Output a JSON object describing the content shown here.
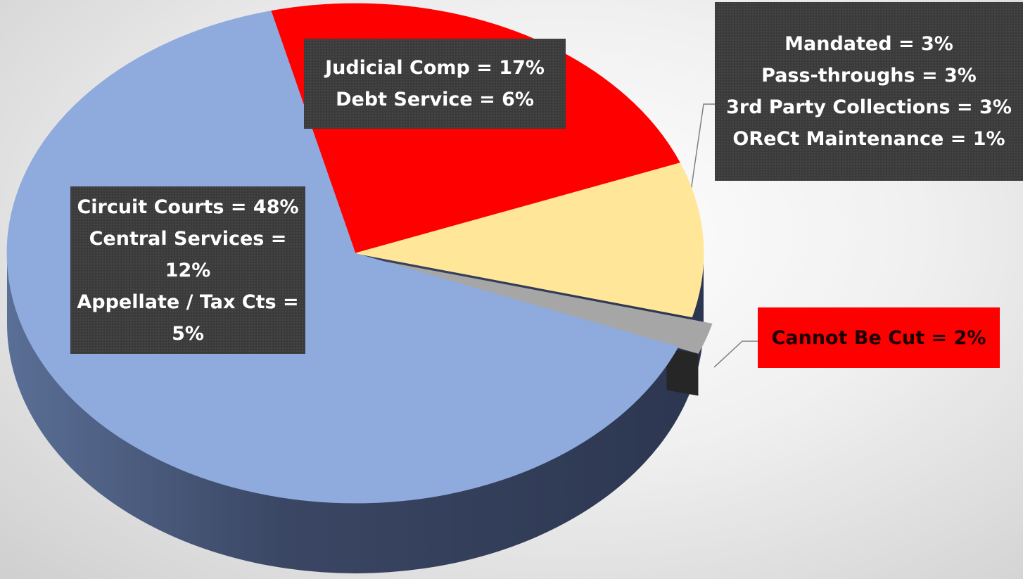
{
  "chart_data": {
    "type": "pie",
    "slices": [
      {
        "color": "#ff0000",
        "items": [
          {
            "label": "Judicial Comp = 17%",
            "value": 17
          },
          {
            "label": "Debt Service = 6%",
            "value": 6
          }
        ]
      },
      {
        "color": "#ffe699",
        "items": [
          {
            "label": "Mandated = 3%",
            "value": 3
          },
          {
            "label": "Pass-throughs = 3%",
            "value": 3
          },
          {
            "label": "3rd Party Collections = 3%",
            "value": 3
          },
          {
            "label": "OReCt Maintenance = 1%",
            "value": 1
          }
        ]
      },
      {
        "color": "#a6a6a6",
        "items": [
          {
            "label": "Cannot Be Cut = 2%",
            "value": 2
          }
        ]
      },
      {
        "color": "#8faadc",
        "items": [
          {
            "label": "Circuit Courts = 48%",
            "value": 48
          },
          {
            "label": "Central Services = 12%",
            "value": 12
          },
          {
            "label": "Appellate / Tax Cts = 5%",
            "value": 5
          }
        ]
      }
    ]
  }
}
